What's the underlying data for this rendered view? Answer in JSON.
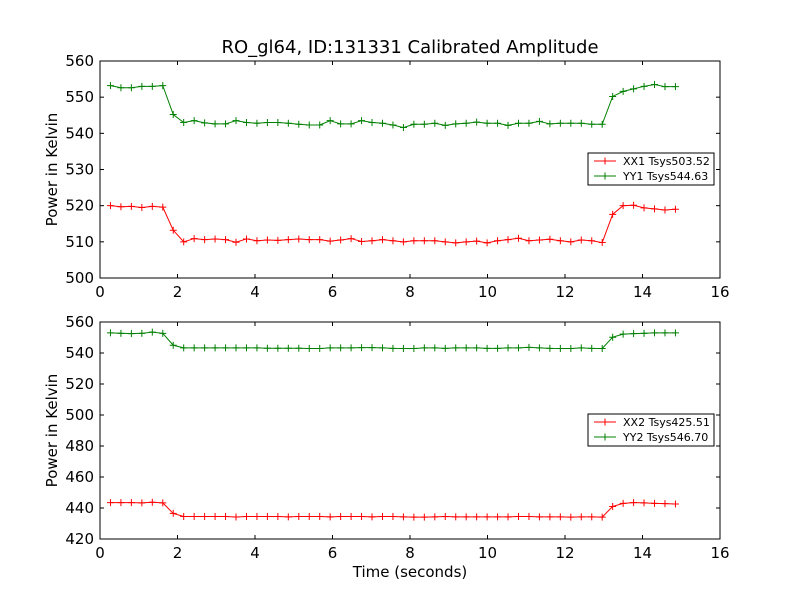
{
  "chart_data": [
    {
      "type": "line",
      "title": "RO_gl64, ID:131331 Calibrated Amplitude",
      "xlabel": "",
      "ylabel": "Power in Kelvin",
      "xlim": [
        0,
        16
      ],
      "ylim": [
        500,
        560
      ],
      "xticks": [
        0,
        2,
        4,
        6,
        8,
        10,
        12,
        14,
        16
      ],
      "yticks": [
        500,
        510,
        520,
        530,
        540,
        550,
        560
      ],
      "legend_position": "center-right",
      "x": [
        0.27,
        0.54,
        0.81,
        1.08,
        1.35,
        1.62,
        1.89,
        2.16,
        2.43,
        2.7,
        2.97,
        3.24,
        3.51,
        3.78,
        4.05,
        4.32,
        4.59,
        4.86,
        5.13,
        5.4,
        5.67,
        5.94,
        6.21,
        6.48,
        6.75,
        7.02,
        7.29,
        7.56,
        7.83,
        8.1,
        8.37,
        8.64,
        8.91,
        9.18,
        9.45,
        9.72,
        9.99,
        10.26,
        10.53,
        10.8,
        11.07,
        11.34,
        11.61,
        11.88,
        12.15,
        12.42,
        12.69,
        12.96,
        13.23,
        13.5,
        13.77,
        14.04,
        14.31,
        14.58,
        14.85
      ],
      "series": [
        {
          "name": "XX1 Tsys503.52",
          "color": "#ff0000",
          "values": [
            520.0,
            519.7,
            519.8,
            519.5,
            519.8,
            519.6,
            513.2,
            510.0,
            510.9,
            510.6,
            510.8,
            510.6,
            509.9,
            510.8,
            510.3,
            510.5,
            510.4,
            510.6,
            510.8,
            510.6,
            510.6,
            510.2,
            510.5,
            510.9,
            510.1,
            510.3,
            510.6,
            510.3,
            510.0,
            510.3,
            510.3,
            510.3,
            510.0,
            509.7,
            510.0,
            510.2,
            509.7,
            510.3,
            510.6,
            511.0,
            510.3,
            510.5,
            510.7,
            510.3,
            510.0,
            510.5,
            510.3,
            509.8,
            517.6,
            520.0,
            520.1,
            519.4,
            519.1,
            518.8,
            519.0
          ]
        },
        {
          "name": "YY1 Tsys544.63",
          "color": "#008000",
          "values": [
            553.2,
            552.6,
            552.6,
            553.0,
            553.0,
            553.2,
            545.2,
            543.0,
            543.5,
            542.9,
            542.6,
            542.6,
            543.5,
            543.0,
            542.8,
            543.0,
            543.0,
            542.8,
            542.5,
            542.3,
            542.3,
            543.5,
            542.6,
            542.6,
            543.5,
            543.0,
            542.8,
            542.3,
            541.6,
            542.5,
            542.5,
            542.8,
            542.2,
            542.6,
            542.8,
            543.1,
            542.8,
            542.8,
            542.2,
            542.8,
            542.8,
            543.3,
            542.6,
            542.8,
            542.8,
            542.8,
            542.5,
            542.5,
            550.2,
            551.6,
            552.3,
            553.0,
            553.5,
            552.9,
            552.9
          ]
        }
      ]
    },
    {
      "type": "line",
      "title": "",
      "xlabel": "Time (seconds)",
      "ylabel": "Power in Kelvin",
      "xlim": [
        0,
        16
      ],
      "ylim": [
        420,
        560
      ],
      "xticks": [
        0,
        2,
        4,
        6,
        8,
        10,
        12,
        14,
        16
      ],
      "yticks": [
        420,
        440,
        460,
        480,
        500,
        520,
        540,
        560
      ],
      "legend_position": "center-right",
      "x": [
        0.27,
        0.54,
        0.81,
        1.08,
        1.35,
        1.62,
        1.89,
        2.16,
        2.43,
        2.7,
        2.97,
        3.24,
        3.51,
        3.78,
        4.05,
        4.32,
        4.59,
        4.86,
        5.13,
        5.4,
        5.67,
        5.94,
        6.21,
        6.48,
        6.75,
        7.02,
        7.29,
        7.56,
        7.83,
        8.1,
        8.37,
        8.64,
        8.91,
        9.18,
        9.45,
        9.72,
        9.99,
        10.26,
        10.53,
        10.8,
        11.07,
        11.34,
        11.61,
        11.88,
        12.15,
        12.42,
        12.69,
        12.96,
        13.23,
        13.5,
        13.77,
        14.04,
        14.31,
        14.58,
        14.85
      ],
      "series": [
        {
          "name": "XX2 Tsys425.51",
          "color": "#ff0000",
          "values": [
            443.5,
            443.5,
            443.5,
            443.3,
            443.7,
            443.3,
            436.5,
            434.5,
            434.5,
            434.5,
            434.5,
            434.5,
            434.2,
            434.5,
            434.5,
            434.5,
            434.5,
            434.3,
            434.5,
            434.5,
            434.5,
            434.3,
            434.5,
            434.5,
            434.5,
            434.3,
            434.5,
            434.5,
            434.3,
            434.1,
            434.1,
            434.3,
            434.5,
            434.3,
            434.3,
            434.3,
            434.3,
            434.3,
            434.3,
            434.5,
            434.5,
            434.3,
            434.3,
            434.3,
            434.1,
            434.3,
            434.3,
            434.1,
            441.0,
            443.0,
            443.5,
            443.3,
            443.0,
            442.8,
            442.6
          ]
        },
        {
          "name": "YY2 Tsys546.70",
          "color": "#008000",
          "values": [
            553.0,
            552.7,
            552.5,
            552.7,
            553.5,
            552.7,
            545.0,
            543.3,
            543.3,
            543.3,
            543.3,
            543.3,
            543.3,
            543.3,
            543.3,
            543.1,
            543.1,
            543.1,
            543.1,
            542.9,
            542.9,
            543.3,
            543.3,
            543.3,
            543.5,
            543.5,
            543.3,
            543.0,
            542.9,
            542.9,
            543.3,
            543.3,
            543.0,
            543.3,
            543.3,
            543.3,
            543.0,
            543.0,
            543.3,
            543.3,
            543.6,
            543.3,
            543.0,
            542.9,
            542.9,
            543.3,
            543.0,
            542.9,
            550.2,
            552.2,
            552.5,
            552.7,
            553.0,
            553.0,
            553.0
          ]
        }
      ]
    }
  ]
}
